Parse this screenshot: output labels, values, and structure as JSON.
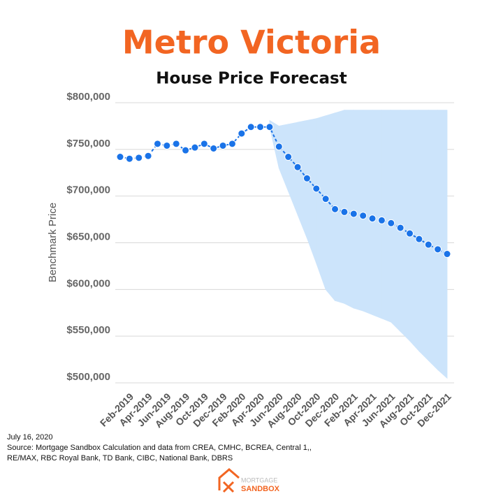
{
  "chart_data": {
    "type": "line",
    "title": "Metro Victoria",
    "subtitle": "House Price Forecast",
    "y_label": "Benchmark Price",
    "categories": [
      null,
      "Feb-2019",
      null,
      "Apr-2019",
      null,
      "Jun-2019",
      null,
      "Aug-2019",
      null,
      "Oct-2019",
      null,
      "Dec-2019",
      null,
      "Feb-2020",
      null,
      "Apr-2020",
      null,
      "Jun-2020",
      null,
      "Aug-2020",
      null,
      "Oct-2020",
      null,
      "Dec-2020",
      null,
      "Feb-2021",
      null,
      "Apr-2021",
      null,
      "Jun-2021",
      null,
      "Aug-2021",
      null,
      "Oct-2021",
      null,
      "Dec-2021"
    ],
    "values": [
      742000,
      740000,
      741000,
      743000,
      756000,
      754000,
      756000,
      749000,
      752000,
      756000,
      751000,
      754000,
      756000,
      767000,
      774000,
      774000,
      774000,
      753000,
      742000,
      731000,
      719000,
      708000,
      697000,
      686000,
      683000,
      681000,
      679000,
      676000,
      674000,
      671000,
      666000,
      660000,
      654000,
      648000,
      643000,
      638000
    ],
    "color": "#1a73e8",
    "band": {
      "color": "#cce4fb",
      "upper": [
        null,
        null,
        null,
        null,
        null,
        null,
        null,
        null,
        null,
        null,
        null,
        null,
        null,
        null,
        null,
        null,
        781000,
        775000,
        777000,
        779000,
        781000,
        783000,
        786000,
        789000,
        792000,
        792000,
        792000,
        792000,
        792000,
        792000,
        792000,
        792000,
        792000,
        792000,
        792000,
        792000
      ],
      "lower": [
        null,
        null,
        null,
        null,
        null,
        null,
        null,
        null,
        null,
        null,
        null,
        null,
        null,
        null,
        null,
        null,
        774000,
        730000,
        705000,
        680000,
        655000,
        628000,
        600000,
        588000,
        585000,
        580000,
        577000,
        573000,
        569000,
        565000,
        555000,
        545000,
        534000,
        524000,
        514000,
        505000
      ]
    },
    "ylim": [
      500000,
      800000
    ],
    "yticks": [
      {
        "value": 500000,
        "label": "$500,000"
      },
      {
        "value": 550000,
        "label": "$550,000"
      },
      {
        "value": 600000,
        "label": "$600,000"
      },
      {
        "value": 650000,
        "label": "$650,000"
      },
      {
        "value": 700000,
        "label": "$700,000"
      },
      {
        "value": 750000,
        "label": "$750,000"
      },
      {
        "value": 800000,
        "label": "$800,000"
      }
    ],
    "grid": true
  },
  "footer": {
    "date": "July 16, 2020",
    "source_1": "Source: Mortgage Sandbox Calculation and data from CREA, CMHC, BCREA, Central 1,,",
    "source_2": "RE/MAX, RBC Royal Bank, TD Bank, CIBC, National Bank, DBRS",
    "logo_top": "MORTGAGE",
    "logo_bottom": "SANDBOX"
  }
}
